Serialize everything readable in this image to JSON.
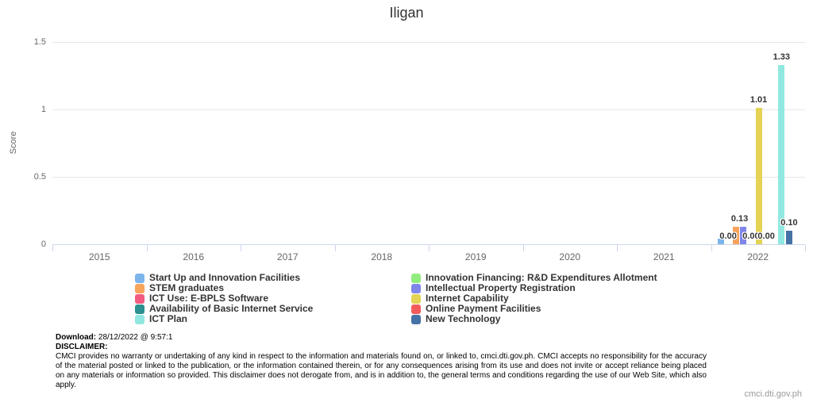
{
  "title": "Iligan",
  "chart_data": {
    "type": "bar",
    "title": "Iligan",
    "xlabel": "",
    "ylabel": "Score",
    "ylim": [
      0,
      1.5
    ],
    "y_ticks": [
      0,
      0.5,
      1,
      1.5
    ],
    "y_tick_labels": [
      "0",
      "0.5",
      "1",
      "1.5"
    ],
    "grid": true,
    "legend_position": "bottom",
    "categories": [
      "2015",
      "2016",
      "2017",
      "2018",
      "2019",
      "2020",
      "2021",
      "2022"
    ],
    "series": [
      {
        "name": "Start Up and Innovation Facilities",
        "color": "#7cb5ec",
        "values": [
          0,
          0,
          0,
          0,
          0,
          0,
          0,
          0.04
        ]
      },
      {
        "name": "Innovation Financing: R&D Expenditures Allotment",
        "color": "#90ed7d",
        "values": [
          0,
          0,
          0,
          0,
          0,
          0,
          0,
          0
        ]
      },
      {
        "name": "STEM graduates",
        "color": "#f7a35c",
        "values": [
          0,
          0,
          0,
          0,
          0,
          0,
          0,
          0.13
        ]
      },
      {
        "name": "Intellectual Property Registration",
        "color": "#8085e9",
        "values": [
          0,
          0,
          0,
          0,
          0,
          0,
          0,
          0.13
        ]
      },
      {
        "name": "ICT Use: E-BPLS Software",
        "color": "#f15c80",
        "values": [
          0,
          0,
          0,
          0,
          0,
          0,
          0,
          0
        ]
      },
      {
        "name": "Internet Capability",
        "color": "#e4d354",
        "values": [
          0,
          0,
          0,
          0,
          0,
          0,
          0,
          1.01
        ]
      },
      {
        "name": "Availability of Basic Internet Service",
        "color": "#2b908f",
        "values": [
          0,
          0,
          0,
          0,
          0,
          0,
          0,
          0
        ]
      },
      {
        "name": "Online Payment Facilities",
        "color": "#f45b5b",
        "values": [
          0,
          0,
          0,
          0,
          0,
          0,
          0,
          0
        ]
      },
      {
        "name": "ICT Plan",
        "color": "#91e8e1",
        "values": [
          0,
          0,
          0,
          0,
          0,
          0,
          0,
          1.33
        ]
      },
      {
        "name": "New Technology",
        "color": "#4572a7",
        "values": [
          0,
          0,
          0,
          0,
          0,
          0,
          0,
          0.1
        ]
      }
    ],
    "visible_data_labels": [
      {
        "text": "0.00",
        "slot": 1,
        "y_value": 0
      },
      {
        "text": "0.13",
        "slot": 2.5,
        "y_value": 0.13
      },
      {
        "text": "0.00",
        "slot": 4,
        "y_value": 0
      },
      {
        "text": "1.01",
        "slot": 5,
        "y_value": 1.01
      },
      {
        "text": "0.00",
        "slot": 6,
        "y_value": 0
      },
      {
        "text": "1.33",
        "slot": 8,
        "y_value": 1.33
      },
      {
        "text": "0.10",
        "slot": 9,
        "y_value": 0.1
      }
    ]
  },
  "footer": {
    "download_label": "Download:",
    "download_value": " 28/12/2022 @ 9:57:1",
    "disclaimer_label": "DISCLAIMER:",
    "disclaimer_text": "CMCI provides no warranty or undertaking of any kind in respect to the information and materials found on, or linked to, cmci.dti.gov.ph. CMCI accepts no responsibility for the accuracy of the material posted or linked to the publication, or the information contained therein, or for any consequences arising from its use and does not invite or accept reliance being placed on any materials or information so provided. This disclaimer does not derogate from, and is in addition to, the general terms and conditions regarding the use of our Web Site, which also apply.",
    "website": "cmci.dti.gov.ph"
  }
}
